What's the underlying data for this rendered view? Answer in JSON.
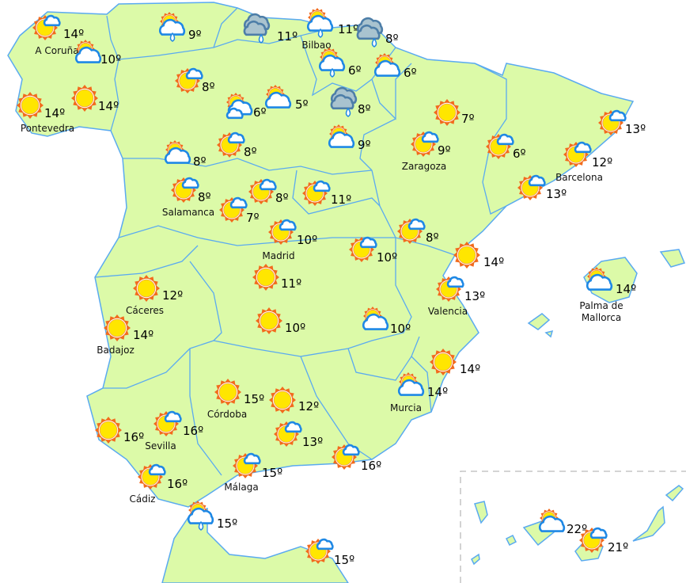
{
  "map": {
    "colors": {
      "land": "#dcfaa8",
      "border": "#5aaaf0",
      "sun_rays": "#f26b1d",
      "sun_core": "#ffe600",
      "cloud_stroke": "#1e88e5",
      "rain_cloud": "#a9c3cf",
      "rain_cloud_stroke": "#4d7ea8"
    },
    "locations": [
      {
        "city": "A Coruña",
        "temp": "14º",
        "icon": "sun-small-cloud"
      },
      {
        "city": "",
        "temp": "10º",
        "icon": "sun-behind-cloud"
      },
      {
        "city": "Pontevedra",
        "temp": "14º",
        "icon": "sun"
      },
      {
        "city": "",
        "temp": "14º",
        "icon": "sun"
      },
      {
        "city": "",
        "temp": "9º",
        "icon": "sun-rain"
      },
      {
        "city": "",
        "temp": "11º",
        "icon": "rain"
      },
      {
        "city": "Bilbao",
        "temp": "11º",
        "icon": "sun-rain"
      },
      {
        "city": "",
        "temp": "8º",
        "icon": "rain"
      },
      {
        "city": "",
        "temp": "6º",
        "icon": "sun-rain"
      },
      {
        "city": "",
        "temp": "6º",
        "icon": "sun-behind-cloud"
      },
      {
        "city": "",
        "temp": "8º",
        "icon": "sun-small-cloud"
      },
      {
        "city": "",
        "temp": "6º",
        "icon": "sun-two-clouds"
      },
      {
        "city": "",
        "temp": "5º",
        "icon": "sun-behind-cloud"
      },
      {
        "city": "",
        "temp": "8º",
        "icon": "rain"
      },
      {
        "city": "",
        "temp": "7º",
        "icon": "sun"
      },
      {
        "city": "",
        "temp": "13º",
        "icon": "sun-small-cloud"
      },
      {
        "city": "",
        "temp": "8º",
        "icon": "sun-behind-cloud"
      },
      {
        "city": "",
        "temp": "8º",
        "icon": "sun-small-cloud"
      },
      {
        "city": "",
        "temp": "9º",
        "icon": "sun-behind-cloud"
      },
      {
        "city": "Zaragoza",
        "temp": "9º",
        "icon": "sun-small-cloud"
      },
      {
        "city": "",
        "temp": "6º",
        "icon": "sun-small-cloud"
      },
      {
        "city": "Barcelona",
        "temp": "12º",
        "icon": "sun-small-cloud"
      },
      {
        "city": "",
        "temp": "13º",
        "icon": "sun-small-cloud"
      },
      {
        "city": "Salamanca",
        "temp": "8º",
        "icon": "sun-small-cloud"
      },
      {
        "city": "",
        "temp": "7º",
        "icon": "sun-small-cloud"
      },
      {
        "city": "",
        "temp": "8º",
        "icon": "sun-small-cloud"
      },
      {
        "city": "",
        "temp": "11º",
        "icon": "sun-small-cloud"
      },
      {
        "city": "Madrid",
        "temp": "10º",
        "icon": "sun-small-cloud"
      },
      {
        "city": "",
        "temp": "8º",
        "icon": "sun-small-cloud"
      },
      {
        "city": "",
        "temp": "10º",
        "icon": "sun-small-cloud"
      },
      {
        "city": "",
        "temp": "14º",
        "icon": "sun"
      },
      {
        "city": "",
        "temp": "11º",
        "icon": "sun"
      },
      {
        "city": "Cáceres",
        "temp": "12º",
        "icon": "sun"
      },
      {
        "city": "Valencia",
        "temp": "13º",
        "icon": "sun-small-cloud"
      },
      {
        "city": "Badajoz",
        "temp": "14º",
        "icon": "sun"
      },
      {
        "city": "",
        "temp": "10º",
        "icon": "sun"
      },
      {
        "city": "",
        "temp": "10º",
        "icon": "sun-behind-cloud"
      },
      {
        "city": "",
        "temp": "14º",
        "icon": "sun"
      },
      {
        "city": "Murcia",
        "temp": "14º",
        "icon": "sun-behind-cloud"
      },
      {
        "city": "Córdoba",
        "temp": "15º",
        "icon": "sun"
      },
      {
        "city": "",
        "temp": "12º",
        "icon": "sun"
      },
      {
        "city": "",
        "temp": "16º",
        "icon": "sun"
      },
      {
        "city": "Sevilla",
        "temp": "16º",
        "icon": "sun-small-cloud"
      },
      {
        "city": "",
        "temp": "13º",
        "icon": "sun-small-cloud"
      },
      {
        "city": "",
        "temp": "16º",
        "icon": "sun-small-cloud"
      },
      {
        "city": "Málaga",
        "temp": "15º",
        "icon": "sun-small-cloud"
      },
      {
        "city": "Cádiz",
        "temp": "16º",
        "icon": "sun-small-cloud"
      },
      {
        "city": "",
        "temp": "15º",
        "icon": "sun-rain"
      },
      {
        "city": "",
        "temp": "15º",
        "icon": "sun-small-cloud"
      },
      {
        "city": "Palma de Mallorca",
        "temp": "14º",
        "icon": "sun-behind-cloud"
      },
      {
        "city": "",
        "temp": "22º",
        "icon": "sun-behind-cloud"
      },
      {
        "city": "",
        "temp": "21º",
        "icon": "sun-small-cloud"
      }
    ]
  }
}
